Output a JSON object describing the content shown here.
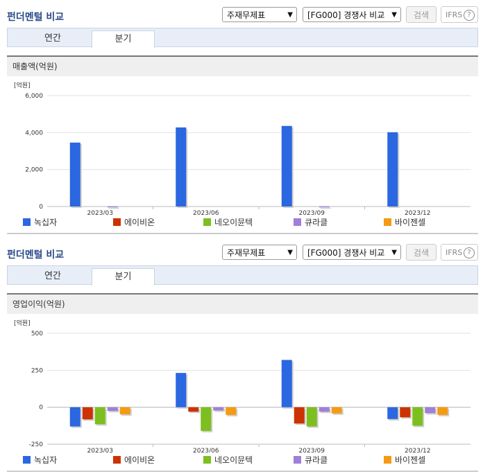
{
  "panel_title": "펀더멘털 비교",
  "statement_select": "주재무제표",
  "group_select": "[FG000] 경쟁사 비교",
  "search_label": "검색",
  "ifrs_label": "IFRS",
  "help_label": "?",
  "tabs": [
    "연간",
    "분기"
  ],
  "active_tab": "분기",
  "colors": {
    "녹십자": "#2a67e0",
    "에이비온": "#cc3300",
    "네오이뮨텍": "#7dbf1e",
    "큐라클": "#a07fd9",
    "바이젠셀": "#f59a12"
  },
  "chart_data": [
    {
      "type": "bar",
      "title": "매출액(억원)",
      "unit": "[억원]",
      "categories": [
        "2023/03",
        "2023/06",
        "2023/09",
        "2023/12"
      ],
      "ylim": [
        0,
        6000
      ],
      "yticks": [
        "0",
        "2,000",
        "4,000",
        "6,000"
      ],
      "ytick_values": [
        0,
        2000,
        4000,
        6000
      ],
      "series": [
        {
          "name": "녹십자",
          "values": [
            3460,
            4280,
            4360,
            4020
          ]
        },
        {
          "name": "에이비온",
          "values": [
            0,
            0,
            0,
            0
          ]
        },
        {
          "name": "네오이뮨텍",
          "values": [
            0,
            0,
            0,
            0
          ]
        },
        {
          "name": "큐라클",
          "values": [
            10,
            0,
            10,
            0
          ]
        },
        {
          "name": "바이젠셀",
          "values": [
            0,
            0,
            0,
            0
          ]
        }
      ]
    },
    {
      "type": "bar",
      "title": "영업이익(억원)",
      "unit": "[억원]",
      "categories": [
        "2023/03",
        "2023/06",
        "2023/09",
        "2023/12"
      ],
      "ylim": [
        -250,
        500
      ],
      "yticks": [
        "-250",
        "0",
        "250",
        "500"
      ],
      "ytick_values": [
        -250,
        0,
        250,
        500
      ],
      "series": [
        {
          "name": "녹십자",
          "values": [
            -130,
            232,
            320,
            -80
          ]
        },
        {
          "name": "에이비온",
          "values": [
            -82,
            -30,
            -110,
            -68
          ]
        },
        {
          "name": "네오이뮨텍",
          "values": [
            -115,
            -160,
            -130,
            -125
          ]
        },
        {
          "name": "큐라클",
          "values": [
            -25,
            -22,
            -30,
            -40
          ]
        },
        {
          "name": "바이젠셀",
          "values": [
            -48,
            -52,
            -42,
            -52
          ]
        }
      ]
    }
  ]
}
